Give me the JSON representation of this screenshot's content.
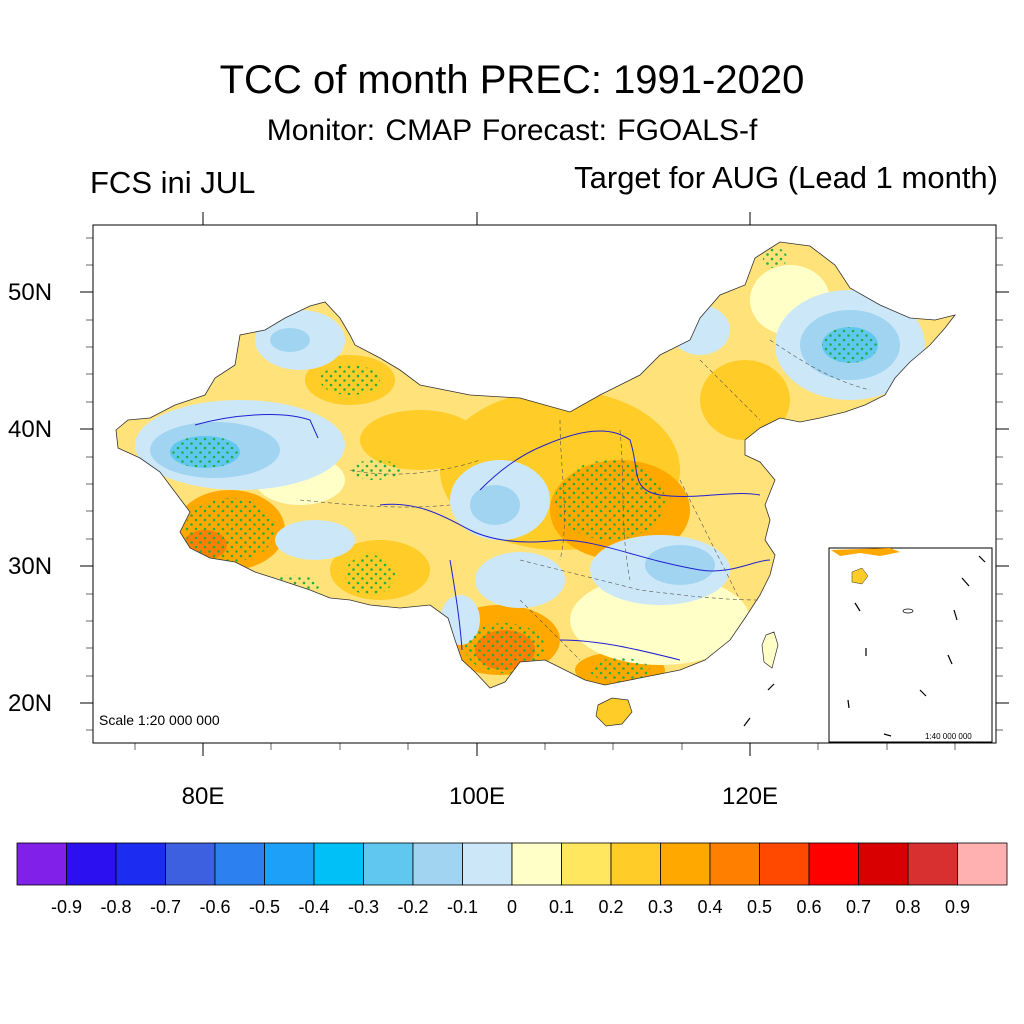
{
  "title": "TCC of month PREC: 1991-2020",
  "subtitle": "Monitor: CMAP   Forecast: FGOALS-f",
  "left_label": "FCS ini JUL",
  "right_label": "Target for AUG (Lead 1 month)",
  "map": {
    "region": "China",
    "variable": "Temporal correlation coefficient (TCC) of monthly precipitation",
    "lat_ticks": [
      "50N",
      "40N",
      "30N",
      "20N"
    ],
    "lon_ticks": [
      "80E",
      "100E",
      "120E"
    ],
    "lat_range": [
      17,
      55
    ],
    "lon_range": [
      72,
      138
    ],
    "scale_main": "Scale 1:20 000 000",
    "scale_inset": "1:40 000 000",
    "stippling": "dots mark significant correlation"
  },
  "colorbar": {
    "labels": [
      "-0.9",
      "-0.8",
      "-0.7",
      "-0.6",
      "-0.5",
      "-0.4",
      "-0.3",
      "-0.2",
      "-0.1",
      "0",
      "0.1",
      "0.2",
      "0.3",
      "0.4",
      "0.5",
      "0.6",
      "0.7",
      "0.8",
      "0.9"
    ],
    "colors": [
      "#8020e8",
      "#2c10f0",
      "#1c2cf0",
      "#3c60e0",
      "#2c80f0",
      "#1ca0f8",
      "#00c0f8",
      "#60c8f0",
      "#a0d4f0",
      "#cce8f8",
      "#ffffc8",
      "#ffe860",
      "#ffcc28",
      "#ffa800",
      "#ff8000",
      "#ff4800",
      "#ff0000",
      "#d80000",
      "#d83030",
      "#ffb0b0"
    ]
  }
}
